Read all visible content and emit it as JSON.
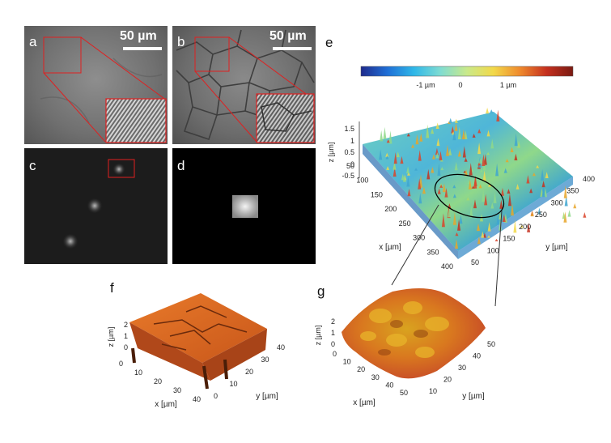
{
  "panels": {
    "a": {
      "label": "a",
      "scale": "50 µm"
    },
    "b": {
      "label": "b",
      "scale": "50 µm"
    },
    "c": {
      "label": "c"
    },
    "d": {
      "label": "d"
    },
    "e": {
      "label": "e",
      "colorbar": {
        "ticks": [
          "-1 µm",
          "0",
          "1 µm"
        ],
        "stops": [
          "#1f2a8c",
          "#1f6fd6",
          "#2fb7e8",
          "#7fdcd2",
          "#c9e98a",
          "#f2d94a",
          "#ef8a2d",
          "#c5301f",
          "#7a1a12"
        ]
      },
      "z_axis": {
        "label": "z [µm]",
        "ticks": [
          "1.5",
          "1",
          "0.5",
          "0",
          "-0.5"
        ]
      },
      "x_axis": {
        "label": "x [µm]",
        "ticks": [
          "50",
          "100",
          "150",
          "200",
          "250",
          "300",
          "350",
          "400"
        ]
      },
      "y_axis": {
        "label": "y [µm]",
        "ticks": [
          "50",
          "100",
          "150",
          "200",
          "250",
          "300",
          "350",
          "400"
        ]
      }
    },
    "f": {
      "label": "f",
      "z_axis": {
        "label": "z [µm]",
        "ticks": [
          "2",
          "1",
          "0"
        ]
      },
      "x_axis": {
        "label": "x [µm]",
        "ticks": [
          "0",
          "10",
          "20",
          "30",
          "40"
        ]
      },
      "y_axis": {
        "label": "y [µm]",
        "ticks": [
          "0",
          "10",
          "20",
          "30",
          "40"
        ]
      }
    },
    "g": {
      "label": "g",
      "z_axis": {
        "label": "z [µm]",
        "ticks": [
          "2",
          "1",
          "0"
        ]
      },
      "x_axis": {
        "label": "x [µm]",
        "ticks": [
          "0",
          "10",
          "20",
          "30",
          "40",
          "50"
        ]
      },
      "y_axis": {
        "label": "y [µm]",
        "ticks": [
          "10",
          "20",
          "30",
          "40",
          "50"
        ]
      }
    }
  }
}
